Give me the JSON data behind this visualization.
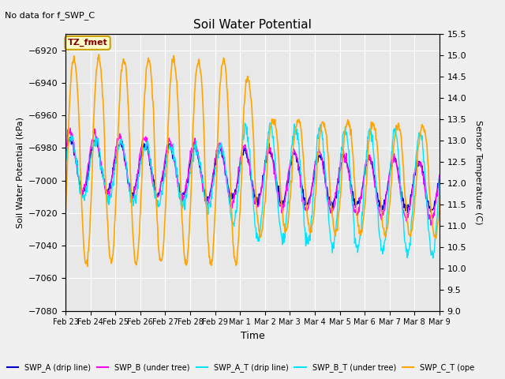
{
  "title": "Soil Water Potential",
  "note": "No data for f_SWP_C",
  "xlabel": "Time",
  "ylabel_left": "Soil Water Potential (kPa)",
  "ylabel_right": "Sensor Temperature (C)",
  "ylim_left": [
    -7080,
    -6910
  ],
  "ylim_right": [
    9.0,
    15.5
  ],
  "yticks_left": [
    -7080,
    -7060,
    -7040,
    -7020,
    -7000,
    -6980,
    -6960,
    -6940,
    -6920
  ],
  "yticks_right": [
    9.0,
    9.5,
    10.0,
    10.5,
    11.0,
    11.5,
    12.0,
    12.5,
    13.0,
    13.5,
    14.0,
    14.5,
    15.0,
    15.5
  ],
  "tz_label": "TZ_fmet",
  "tz_color": "#800000",
  "tz_bg": "#ffffcc",
  "tz_border": "#c8a000",
  "plot_bg_color": "#e8e8e8",
  "fig_bg_color": "#f0f0f0",
  "line_colors": {
    "SWP_A": "#0000cd",
    "SWP_B": "#ff00ff",
    "SWP_A_T": "#00e5ff",
    "SWP_C_T": "#ffa500"
  },
  "legend_labels": [
    "SWP_A (drip line)",
    "SWP_B (under tree)",
    "SWP_A_T (drip line)",
    "SWP_B_T (under tree)",
    "SWP_C_T (ope"
  ],
  "legend_colors": [
    "#0000cd",
    "#ff00ff",
    "#00e5ff",
    "#00e5ff",
    "#ffa500"
  ],
  "xtick_labels": [
    "Feb 23",
    "Feb 24",
    "Feb 25",
    "Feb 26",
    "Feb 27",
    "Feb 28",
    "Feb 29",
    "Mar 1",
    "Mar 2",
    "Mar 3",
    "Mar 4",
    "Mar 5",
    "Mar 6",
    "Mar 7",
    "Mar 8",
    "Mar 9"
  ],
  "n_days": 16
}
